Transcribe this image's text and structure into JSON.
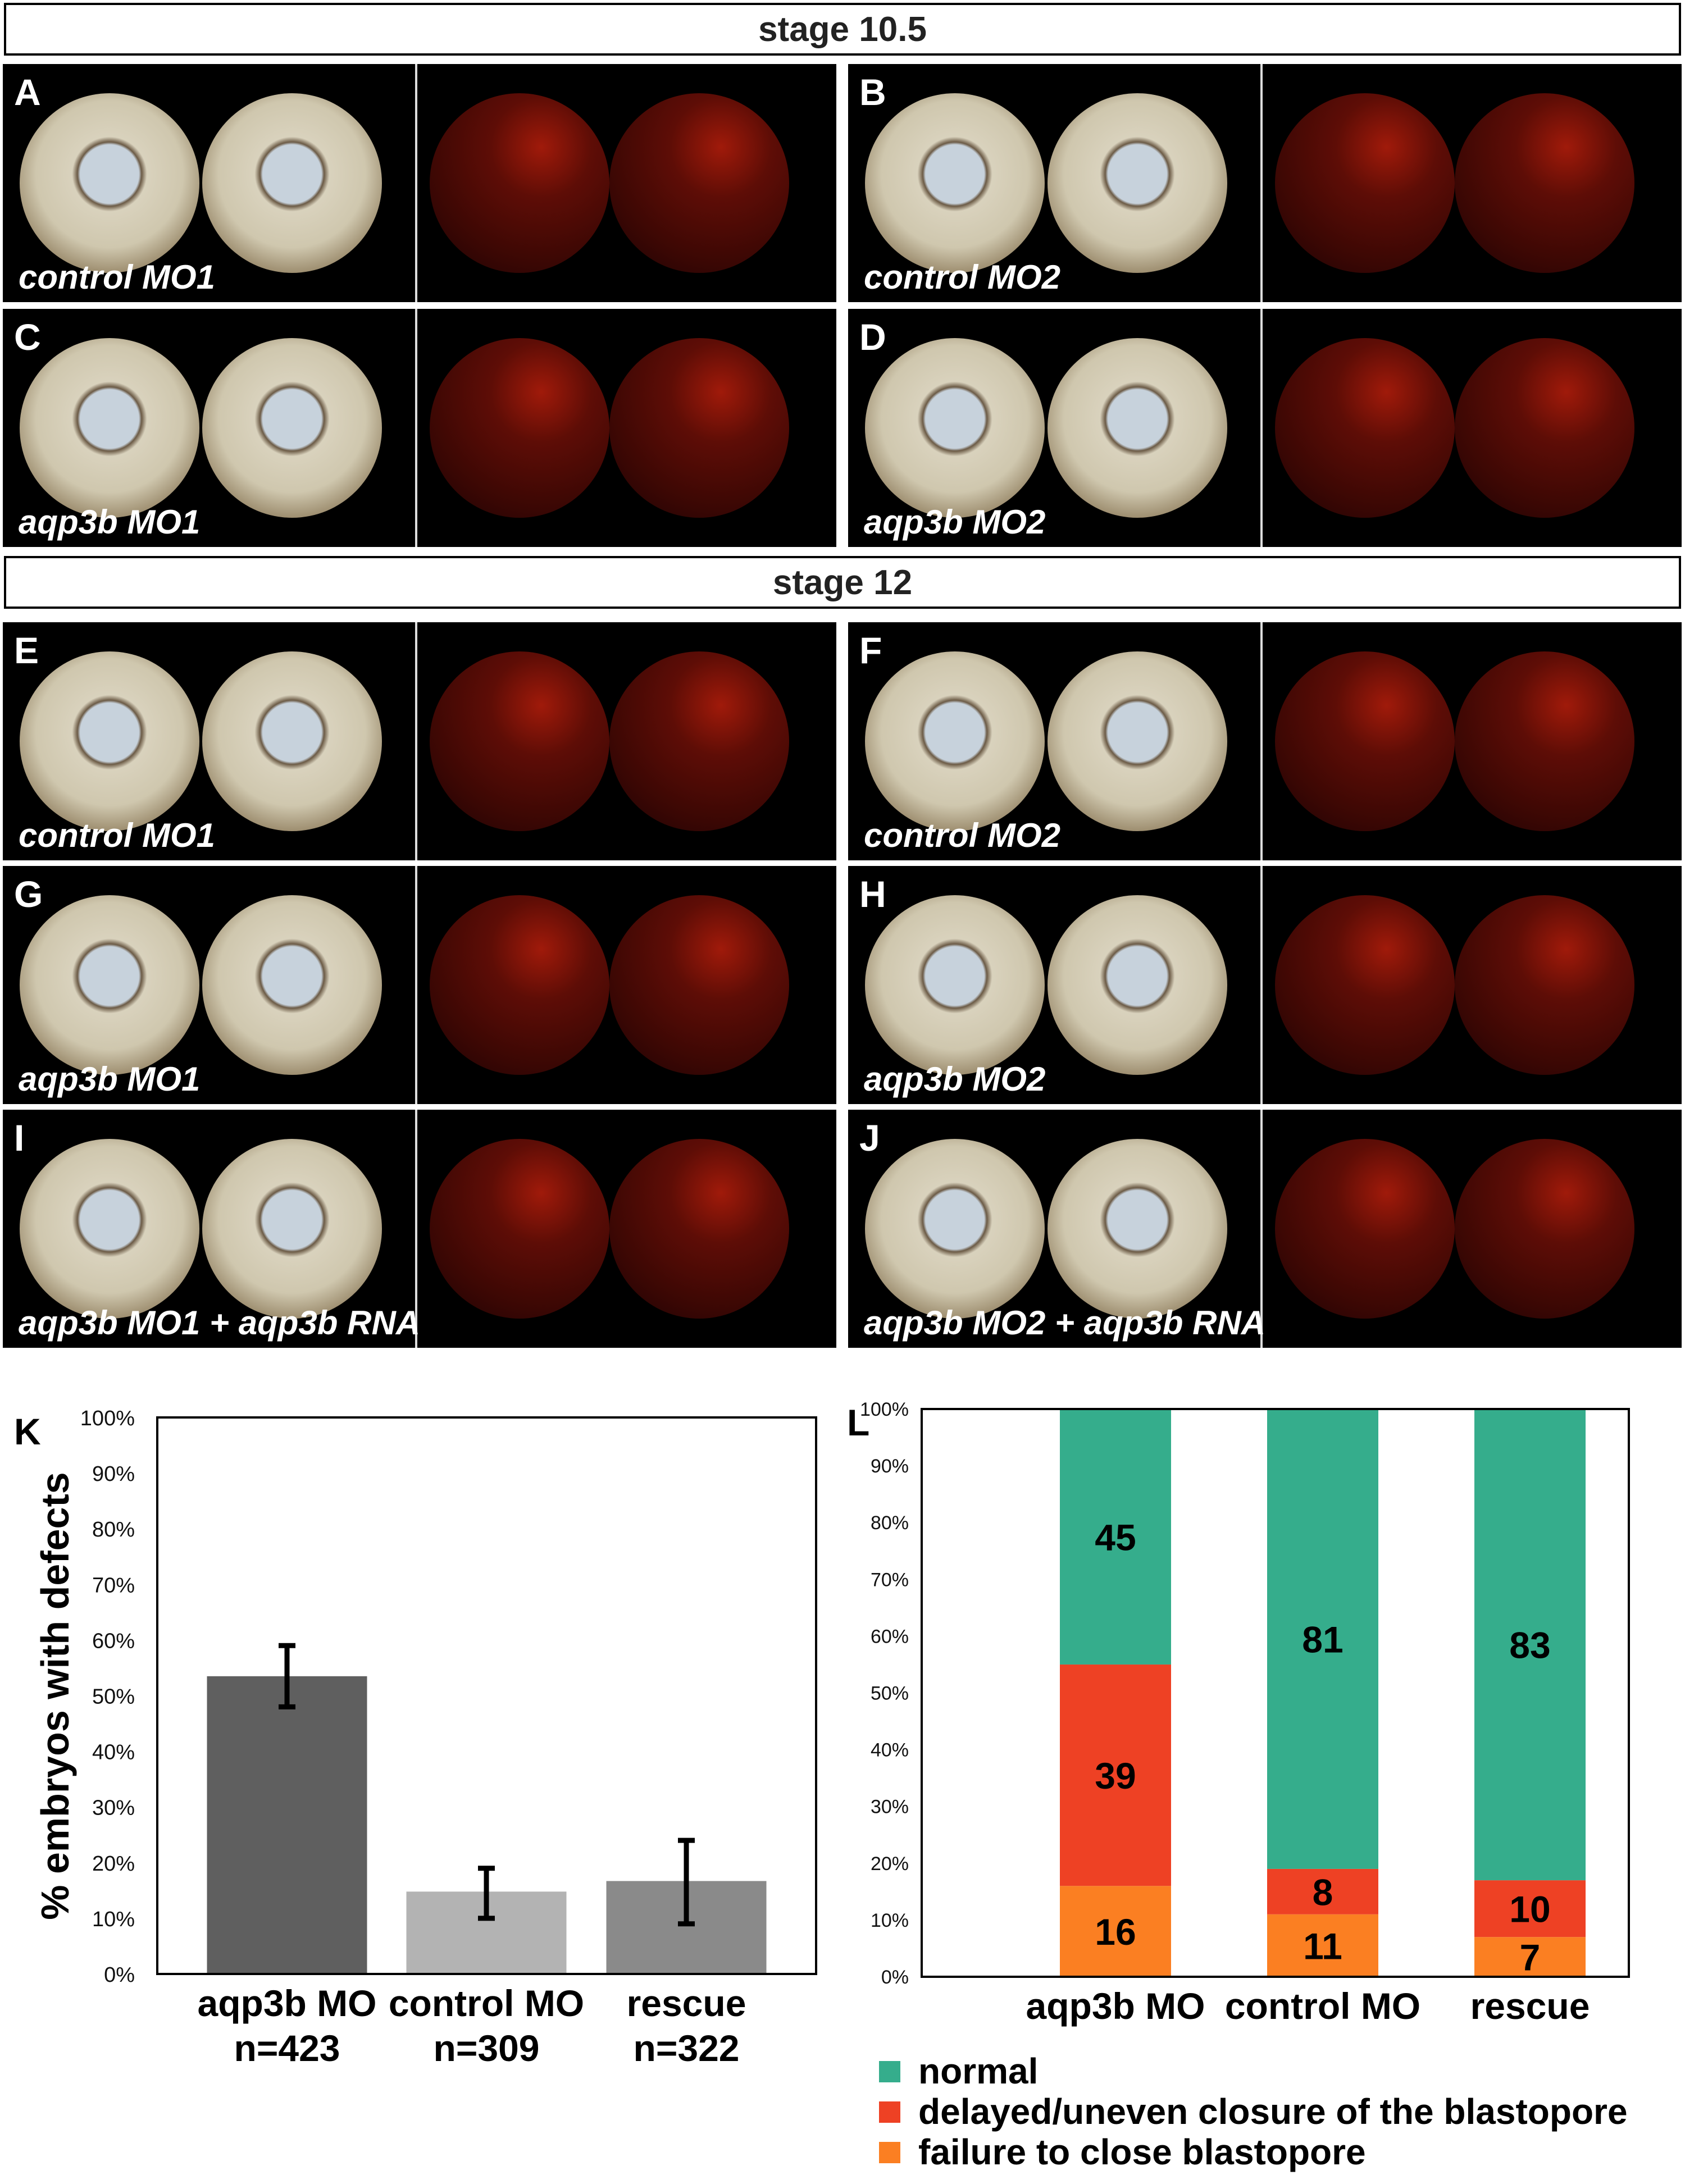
{
  "headers": {
    "stage1": "stage 10.5",
    "stage2": "stage 12"
  },
  "panels": [
    {
      "letter": "A",
      "label": "control  MO1"
    },
    {
      "letter": "B",
      "label": "control  MO2"
    },
    {
      "letter": "C",
      "label": "aqp3b MO1"
    },
    {
      "letter": "D",
      "label": "aqp3b MO2"
    },
    {
      "letter": "E",
      "label": "control  MO1"
    },
    {
      "letter": "F",
      "label": "control  MO2"
    },
    {
      "letter": "G",
      "label": "aqp3b MO1"
    },
    {
      "letter": "H",
      "label": "aqp3b MO2"
    },
    {
      "letter": "I",
      "label": "aqp3b MO1 + aqp3b RNA"
    },
    {
      "letter": "J",
      "label": "aqp3b MO2 + aqp3b RNA"
    }
  ],
  "chart_data": [
    {
      "panel": "K",
      "type": "bar",
      "categories": [
        "aqp3b MO",
        "control MO",
        "rescue"
      ],
      "n_labels": [
        "n=423",
        "n=309",
        "n=322"
      ],
      "values": [
        53.5,
        14.8,
        16.7
      ],
      "error_low": [
        48,
        10,
        9
      ],
      "error_high": [
        59,
        19,
        24
      ],
      "colors": [
        "#5f5f5f",
        "#b3b3b3",
        "#8a8a8a"
      ],
      "ylabel": "% embryos with defects",
      "ylim": [
        0,
        100
      ],
      "yticks": [
        "0%",
        "10%",
        "20%",
        "30%",
        "40%",
        "50%",
        "60%",
        "70%",
        "80%",
        "90%",
        "100%"
      ]
    },
    {
      "panel": "L",
      "type": "bar",
      "stacked": true,
      "categories": [
        "aqp3b MO",
        "control MO",
        "rescue"
      ],
      "series": [
        {
          "name": "failure to close blastopore",
          "color": "#fb7f22",
          "values": [
            16,
            11,
            7
          ]
        },
        {
          "name": "delayed/uneven closure of the blastopore",
          "color": "#ee4124",
          "values": [
            39,
            8,
            10
          ]
        },
        {
          "name": "normal",
          "color": "#35ad8c",
          "values": [
            45,
            81,
            83
          ]
        }
      ],
      "legend_order": [
        "normal",
        "delayed/uneven closure of the blastopore",
        "failure to close blastopore"
      ],
      "ylim": [
        0,
        100
      ],
      "yticks": [
        "0%",
        "10%",
        "20%",
        "30%",
        "40%",
        "50%",
        "60%",
        "70%",
        "80%",
        "90%",
        "100%"
      ]
    }
  ]
}
